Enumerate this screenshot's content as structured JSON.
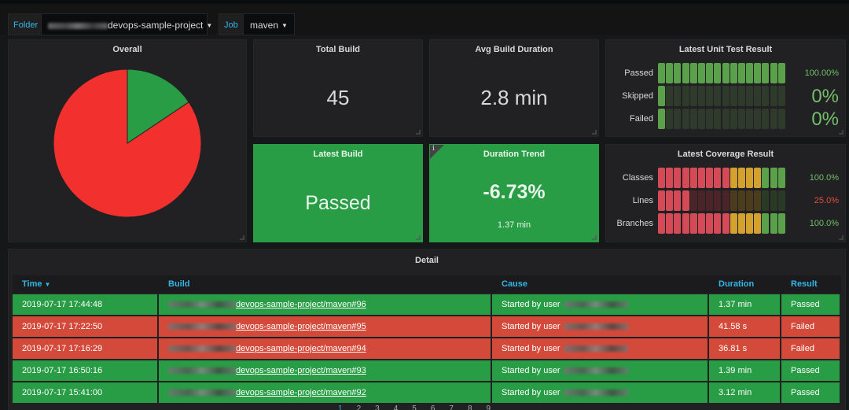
{
  "variables": {
    "folder": {
      "label": "Folder",
      "value": "devops-sample-project"
    },
    "job": {
      "label": "Job",
      "value": "maven"
    }
  },
  "panels": {
    "overall": {
      "title": "Overall"
    },
    "total_build": {
      "title": "Total Build",
      "value": "45"
    },
    "avg_duration": {
      "title": "Avg Build Duration",
      "value": "2.8 min"
    },
    "latest_build": {
      "title": "Latest Build",
      "value": "Passed"
    },
    "duration_trend": {
      "title": "Duration Trend",
      "value": "-6.73%",
      "sub": "1.37 min"
    },
    "unit_test": {
      "title": "Latest Unit Test Result",
      "rows": [
        {
          "label": "Passed",
          "value": "100.00%",
          "fraction": 1.0,
          "value_color": "#73bf69",
          "value_size": "small"
        },
        {
          "label": "Skipped",
          "value": "0%",
          "fraction": 0.0,
          "value_color": "#73bf69",
          "value_size": "large"
        },
        {
          "label": "Failed",
          "value": "0%",
          "fraction": 0.0,
          "value_color": "#73bf69",
          "value_size": "large"
        }
      ]
    },
    "coverage": {
      "title": "Latest Coverage Result",
      "rows": [
        {
          "label": "Classes",
          "value": "100.0%",
          "fraction": 1.0,
          "value_color": "#73bf69"
        },
        {
          "label": "Lines",
          "value": "25.0%",
          "fraction": 0.25,
          "value_color": "#e24d42"
        },
        {
          "label": "Branches",
          "value": "100.0%",
          "fraction": 1.0,
          "value_color": "#73bf69"
        }
      ]
    },
    "detail": {
      "title": "Detail"
    }
  },
  "chart_data": {
    "type": "pie",
    "title": "Overall",
    "slices": [
      {
        "label": "",
        "value": 84.4,
        "color": "#f2302e"
      },
      {
        "label": "",
        "value": 15.6,
        "color": "#299c46"
      }
    ]
  },
  "table": {
    "columns": [
      "Time",
      "Build",
      "Cause",
      "Duration",
      "Result"
    ],
    "rows": [
      {
        "time": "2019-07-17 17:44:48",
        "build": "devops-sample-project/maven#96",
        "cause": "Started by user",
        "duration": "1.37 min",
        "result": "Passed"
      },
      {
        "time": "2019-07-17 17:22:50",
        "build": "devops-sample-project/maven#95",
        "cause": "Started by user",
        "duration": "41.58 s",
        "result": "Failed"
      },
      {
        "time": "2019-07-17 17:16:29",
        "build": "devops-sample-project/maven#94",
        "cause": "Started by user",
        "duration": "36.81 s",
        "result": "Failed"
      },
      {
        "time": "2019-07-17 16:50:16",
        "build": "devops-sample-project/maven#93",
        "cause": "Started by user",
        "duration": "1.39 min",
        "result": "Passed"
      },
      {
        "time": "2019-07-17 15:41:00",
        "build": "devops-sample-project/maven#92",
        "cause": "Started by user",
        "duration": "3.12 min",
        "result": "Passed"
      }
    ]
  },
  "pagination": [
    "1",
    "2",
    "3",
    "4",
    "5",
    "6",
    "7",
    "8",
    "9"
  ]
}
